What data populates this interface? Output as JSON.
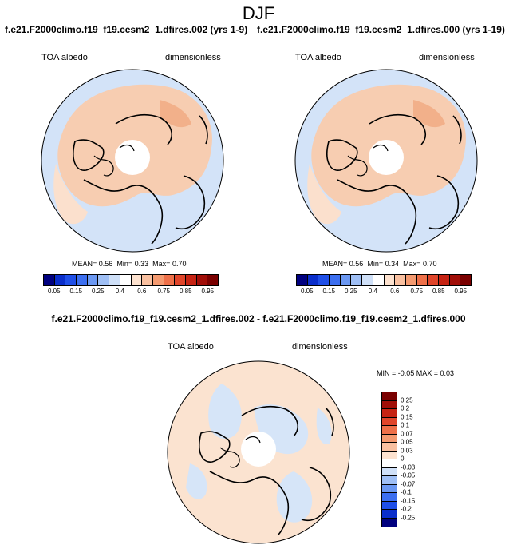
{
  "season": "DJF",
  "panels": {
    "left": {
      "case": "f.e21.F2000climo.f19_f19.cesm2_1.dfires.002 (yrs 1-9)",
      "variable": "TOA albedo",
      "units": "dimensionless",
      "mean_label": "MEAN=",
      "mean": "0.56",
      "min_label": "Min=",
      "min": "0.33",
      "max_label": "Max=",
      "max": "0.70"
    },
    "right": {
      "case": "f.e21.F2000climo.f19_f19.cesm2_1.dfires.000 (yrs 1-19)",
      "variable": "TOA albedo",
      "units": "dimensionless",
      "mean_label": "MEAN=",
      "mean": "0.56",
      "min_label": "Min=",
      "min": "0.34",
      "max_label": "Max=",
      "max": "0.70"
    },
    "diff": {
      "title": "f.e21.F2000climo.f19_f19.cesm2_1.dfires.002 - f.e21.F2000climo.f19_f19.cesm2_1.dfires.000",
      "variable": "TOA albedo",
      "units": "dimensionless",
      "stats": "MIN = -0.05 MAX =  0.03"
    }
  },
  "colorbar_main": {
    "ticks": [
      "0.05",
      "0.15",
      "0.25",
      "0.4",
      "0.6",
      "0.75",
      "0.85",
      "0.95"
    ],
    "colors": [
      "#00007f",
      "#0a2ecb",
      "#1f4fe8",
      "#3c6ff0",
      "#6b98f2",
      "#9fbff5",
      "#cfe0f8",
      "#ffffff",
      "#fde2cf",
      "#f9c0a0",
      "#f49a70",
      "#ee7049",
      "#e0452a",
      "#c62313",
      "#a10e08",
      "#7a0000"
    ]
  },
  "colorbar_diff": {
    "ticks": [
      "0.25",
      "0.2",
      "0.15",
      "0.1",
      "0.07",
      "0.05",
      "0.03",
      "0",
      "-0.03",
      "-0.05",
      "-0.07",
      "-0.1",
      "-0.15",
      "-0.2",
      "-0.25"
    ],
    "colors": [
      "#7a0000",
      "#a10e08",
      "#c62313",
      "#e0452a",
      "#ee7049",
      "#f49a70",
      "#f9c0a0",
      "#fde2cf",
      "#ffffff",
      "#cfe0f8",
      "#9fbff5",
      "#6b98f2",
      "#3c6ff0",
      "#1f4fe8",
      "#0a2ecb",
      "#00007f"
    ]
  }
}
